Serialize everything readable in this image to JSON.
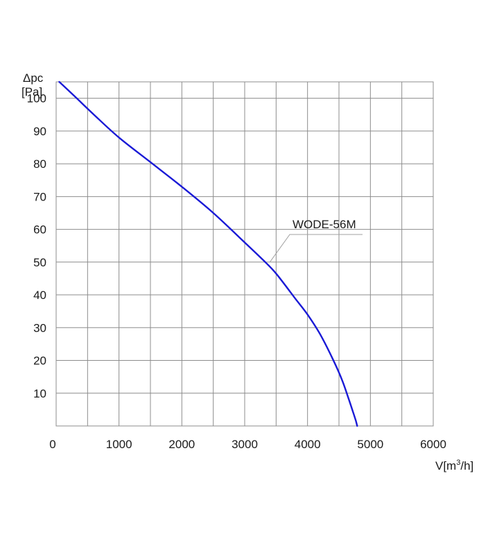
{
  "chart_data": {
    "type": "line",
    "title": "",
    "ylabel_line1": "Δpc",
    "ylabel_line2": "[Pa]",
    "xlabel_prefix": "V[m",
    "xlabel_sup": "3",
    "xlabel_suffix": "/h]",
    "xlim": [
      0,
      6000
    ],
    "ylim": [
      0,
      105
    ],
    "grid": true,
    "x_ticks": [
      0,
      1000,
      2000,
      3000,
      4000,
      5000,
      6000
    ],
    "x_grid": [
      500,
      1000,
      1500,
      2000,
      2500,
      3000,
      3500,
      4000,
      4500,
      5000,
      5500
    ],
    "y_ticks": [
      10,
      20,
      30,
      40,
      50,
      60,
      70,
      80,
      90,
      100
    ],
    "series": [
      {
        "name": "WODE-56M",
        "color": "#1a1ad6",
        "x": [
          50,
          300,
          600,
          1000,
          1500,
          2000,
          2500,
          3000,
          3300,
          3500,
          3800,
          4000,
          4200,
          4400,
          4550,
          4650,
          4720,
          4770,
          4790
        ],
        "y": [
          105,
          100.5,
          95,
          88,
          80.5,
          73,
          65,
          56,
          50.5,
          46.5,
          39,
          34,
          28,
          20.5,
          14,
          8.5,
          4.5,
          1.5,
          0
        ]
      }
    ],
    "annotation": {
      "text": "WODE-56M",
      "point_x": 3400,
      "point_y": 50
    }
  }
}
